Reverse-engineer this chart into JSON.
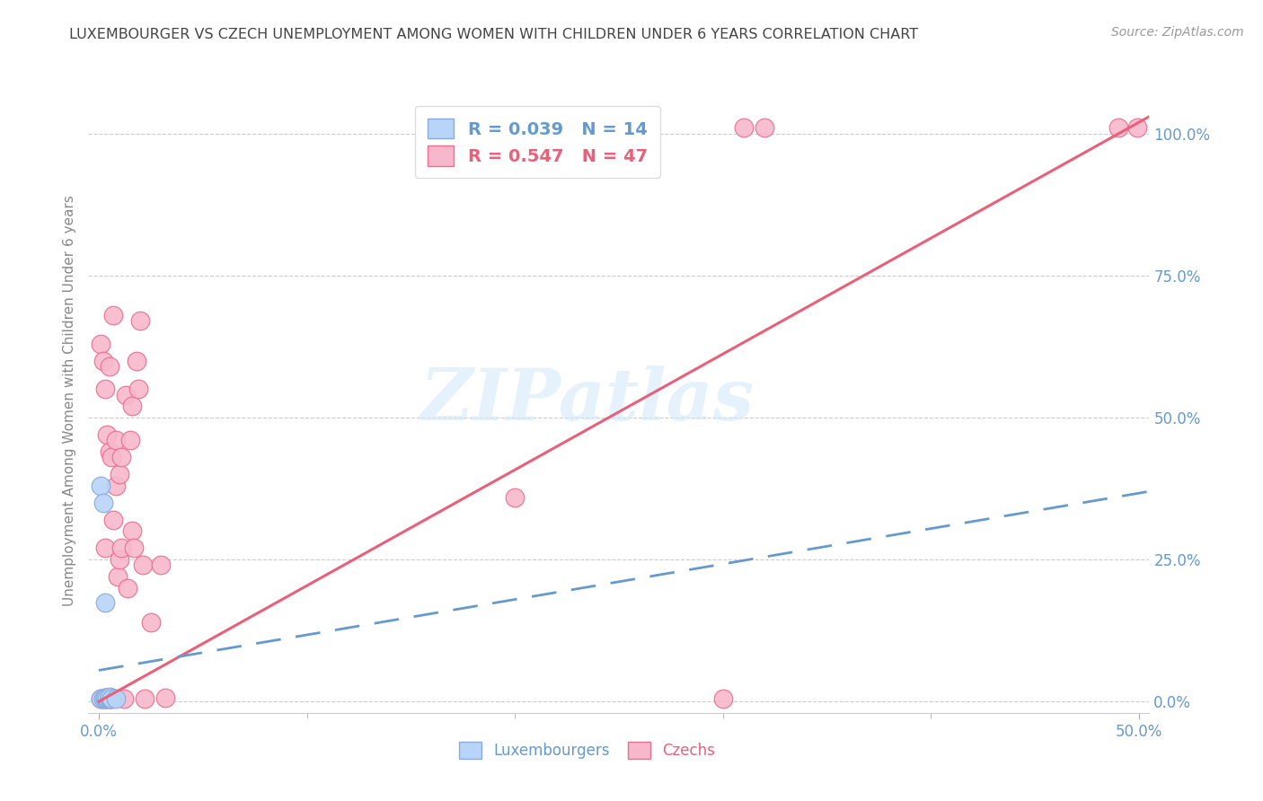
{
  "title": "LUXEMBOURGER VS CZECH UNEMPLOYMENT AMONG WOMEN WITH CHILDREN UNDER 6 YEARS CORRELATION CHART",
  "source": "Source: ZipAtlas.com",
  "ylabel": "Unemployment Among Women with Children Under 6 years",
  "xlim": [
    -0.005,
    0.505
  ],
  "ylim": [
    -0.02,
    1.08
  ],
  "right_yticks": [
    0.0,
    0.25,
    0.5,
    0.75,
    1.0
  ],
  "right_yticklabels": [
    "0.0%",
    "25.0%",
    "50.0%",
    "75.0%",
    "100.0%"
  ],
  "grid_color": "#cccccc",
  "background_color": "#ffffff",
  "lux_face_color": "#b8d4f8",
  "czech_face_color": "#f8b8cc",
  "lux_edge_color": "#88aadd",
  "czech_edge_color": "#e87090",
  "lux_line_color": "#6699cc",
  "czech_line_color": "#e8607a",
  "tick_label_color": "#6699cc",
  "ylabel_color": "#888888",
  "title_color": "#444444",
  "source_color": "#999999",
  "lux_label": "Luxembourgers",
  "czech_label": "Czechs",
  "lux_R": 0.039,
  "lux_N": 14,
  "czech_R": 0.547,
  "czech_N": 47,
  "watermark": "ZIPatlas",
  "xtick_values": [
    0.0,
    0.5
  ],
  "xtick_labels": [
    "0.0%",
    "50.0%"
  ],
  "xtick_minor": [
    0.1,
    0.2,
    0.3,
    0.4
  ],
  "lux_points_x": [
    0.001,
    0.001,
    0.002,
    0.002,
    0.003,
    0.003,
    0.003,
    0.004,
    0.004,
    0.005,
    0.005,
    0.005,
    0.006,
    0.008
  ],
  "lux_points_y": [
    0.005,
    0.38,
    0.35,
    0.005,
    0.005,
    0.006,
    0.175,
    0.005,
    0.007,
    0.005,
    0.006,
    0.008,
    0.005,
    0.005
  ],
  "czech_points_x": [
    0.001,
    0.001,
    0.002,
    0.002,
    0.003,
    0.003,
    0.003,
    0.003,
    0.004,
    0.004,
    0.005,
    0.005,
    0.005,
    0.005,
    0.006,
    0.006,
    0.006,
    0.007,
    0.007,
    0.008,
    0.008,
    0.009,
    0.01,
    0.01,
    0.011,
    0.011,
    0.012,
    0.013,
    0.014,
    0.015,
    0.016,
    0.016,
    0.017,
    0.018,
    0.019,
    0.02,
    0.021,
    0.022,
    0.025,
    0.03,
    0.032,
    0.2,
    0.3,
    0.31,
    0.32,
    0.49,
    0.499
  ],
  "czech_points_y": [
    0.005,
    0.63,
    0.005,
    0.6,
    0.005,
    0.006,
    0.27,
    0.55,
    0.006,
    0.47,
    0.005,
    0.006,
    0.59,
    0.44,
    0.005,
    0.006,
    0.43,
    0.32,
    0.68,
    0.46,
    0.38,
    0.22,
    0.25,
    0.4,
    0.27,
    0.43,
    0.005,
    0.54,
    0.2,
    0.46,
    0.52,
    0.3,
    0.27,
    0.6,
    0.55,
    0.67,
    0.24,
    0.005,
    0.14,
    0.24,
    0.007,
    0.36,
    0.005,
    1.01,
    1.01,
    1.01,
    1.01
  ],
  "czech_line_x0": 0.0,
  "czech_line_y0": 0.0,
  "czech_line_x1": 0.505,
  "czech_line_y1": 1.03,
  "lux_line_x0": 0.0,
  "lux_line_y0": 0.055,
  "lux_line_x1": 0.505,
  "lux_line_y1": 0.37
}
